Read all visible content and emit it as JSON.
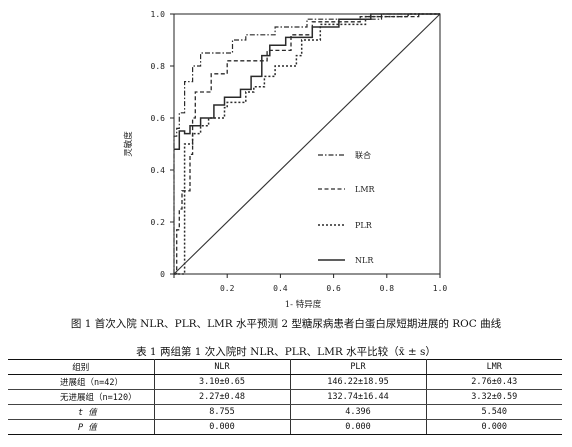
{
  "figure": {
    "caption": "图 1   首次入院 NLR、PLR、LMR 水平预测 2 型糖尿病患者白蛋白尿短期进展的 ROC 曲线"
  },
  "chart_data": {
    "type": "line",
    "xlabel": "1- 特异度",
    "ylabel": "灵敏度",
    "xlim": [
      0,
      1
    ],
    "ylim": [
      0,
      1
    ],
    "x_ticks": [
      "0",
      "0.2",
      "0.4",
      "0.6",
      "0.8",
      "1.0"
    ],
    "y_ticks": [
      "0",
      "0.2",
      "0.4",
      "0.6",
      "0.8",
      "1.0"
    ],
    "grid": false,
    "legend_position": "inside-right",
    "reference_line": true,
    "series": [
      {
        "name": "联合",
        "style": "dash-dot",
        "points": [
          [
            0,
            0
          ],
          [
            0,
            0.53
          ],
          [
            0.01,
            0.53
          ],
          [
            0.01,
            0.56
          ],
          [
            0.02,
            0.56
          ],
          [
            0.02,
            0.62
          ],
          [
            0.04,
            0.62
          ],
          [
            0.04,
            0.74
          ],
          [
            0.07,
            0.74
          ],
          [
            0.07,
            0.8
          ],
          [
            0.1,
            0.8
          ],
          [
            0.1,
            0.85
          ],
          [
            0.22,
            0.85
          ],
          [
            0.22,
            0.9
          ],
          [
            0.27,
            0.9
          ],
          [
            0.27,
            0.92
          ],
          [
            0.38,
            0.92
          ],
          [
            0.38,
            0.95
          ],
          [
            0.5,
            0.95
          ],
          [
            0.5,
            0.98
          ],
          [
            0.78,
            0.98
          ],
          [
            0.78,
            1.0
          ],
          [
            1.0,
            1.0
          ]
        ]
      },
      {
        "name": "LMR",
        "style": "dashed",
        "points": [
          [
            0,
            0
          ],
          [
            0.01,
            0
          ],
          [
            0.01,
            0.17
          ],
          [
            0.02,
            0.17
          ],
          [
            0.02,
            0.25
          ],
          [
            0.03,
            0.25
          ],
          [
            0.03,
            0.32
          ],
          [
            0.06,
            0.32
          ],
          [
            0.06,
            0.46
          ],
          [
            0.07,
            0.46
          ],
          [
            0.07,
            0.6
          ],
          [
            0.08,
            0.6
          ],
          [
            0.08,
            0.7
          ],
          [
            0.14,
            0.7
          ],
          [
            0.14,
            0.77
          ],
          [
            0.2,
            0.77
          ],
          [
            0.2,
            0.82
          ],
          [
            0.35,
            0.82
          ],
          [
            0.35,
            0.86
          ],
          [
            0.44,
            0.86
          ],
          [
            0.44,
            0.92
          ],
          [
            0.52,
            0.92
          ],
          [
            0.52,
            0.97
          ],
          [
            0.7,
            0.97
          ],
          [
            0.7,
            0.99
          ],
          [
            0.92,
            0.99
          ],
          [
            0.92,
            1.0
          ],
          [
            1.0,
            1.0
          ]
        ]
      },
      {
        "name": "PLR",
        "style": "dotted",
        "points": [
          [
            0,
            0
          ],
          [
            0.04,
            0
          ],
          [
            0.04,
            0.5
          ],
          [
            0.07,
            0.5
          ],
          [
            0.07,
            0.54
          ],
          [
            0.1,
            0.54
          ],
          [
            0.1,
            0.57
          ],
          [
            0.13,
            0.57
          ],
          [
            0.13,
            0.6
          ],
          [
            0.19,
            0.6
          ],
          [
            0.19,
            0.64
          ],
          [
            0.2,
            0.64
          ],
          [
            0.2,
            0.66
          ],
          [
            0.27,
            0.66
          ],
          [
            0.27,
            0.7
          ],
          [
            0.3,
            0.7
          ],
          [
            0.3,
            0.72
          ],
          [
            0.34,
            0.72
          ],
          [
            0.34,
            0.76
          ],
          [
            0.38,
            0.76
          ],
          [
            0.38,
            0.8
          ],
          [
            0.46,
            0.8
          ],
          [
            0.46,
            0.84
          ],
          [
            0.48,
            0.84
          ],
          [
            0.48,
            0.9
          ],
          [
            0.55,
            0.9
          ],
          [
            0.55,
            0.96
          ],
          [
            0.72,
            0.96
          ],
          [
            0.72,
            0.99
          ],
          [
            0.88,
            0.99
          ],
          [
            0.88,
            1.0
          ],
          [
            1.0,
            1.0
          ]
        ]
      },
      {
        "name": "NLR",
        "style": "solid",
        "points": [
          [
            0,
            0.48
          ],
          [
            0.02,
            0.48
          ],
          [
            0.02,
            0.55
          ],
          [
            0.04,
            0.55
          ],
          [
            0.04,
            0.54
          ],
          [
            0.06,
            0.54
          ],
          [
            0.06,
            0.57
          ],
          [
            0.1,
            0.57
          ],
          [
            0.1,
            0.6
          ],
          [
            0.15,
            0.6
          ],
          [
            0.15,
            0.65
          ],
          [
            0.19,
            0.65
          ],
          [
            0.19,
            0.68
          ],
          [
            0.25,
            0.68
          ],
          [
            0.25,
            0.71
          ],
          [
            0.29,
            0.71
          ],
          [
            0.29,
            0.76
          ],
          [
            0.33,
            0.76
          ],
          [
            0.33,
            0.84
          ],
          [
            0.36,
            0.84
          ],
          [
            0.36,
            0.88
          ],
          [
            0.42,
            0.88
          ],
          [
            0.42,
            0.91
          ],
          [
            0.52,
            0.91
          ],
          [
            0.52,
            0.95
          ],
          [
            0.62,
            0.95
          ],
          [
            0.62,
            0.98
          ],
          [
            0.74,
            0.98
          ],
          [
            0.74,
            1.0
          ],
          [
            1.0,
            1.0
          ]
        ]
      }
    ]
  },
  "table": {
    "title": "表 1   两组第 1 次入院时 NLR、PLR、LMR 水平比较（x̄ ± s）",
    "headers": [
      "组别",
      "NLR",
      "PLR",
      "LMR"
    ],
    "rows": [
      [
        "进展组（n=42）",
        "3.10±0.65",
        "146.22±18.95",
        "2.76±0.43"
      ],
      [
        "无进展组（n=120）",
        "2.27±0.48",
        "132.74±16.44",
        "3.32±0.59"
      ],
      [
        "t 值",
        "8.755",
        "4.396",
        "5.540"
      ],
      [
        "P 值",
        "0.000",
        "0.000",
        "0.000"
      ]
    ]
  }
}
